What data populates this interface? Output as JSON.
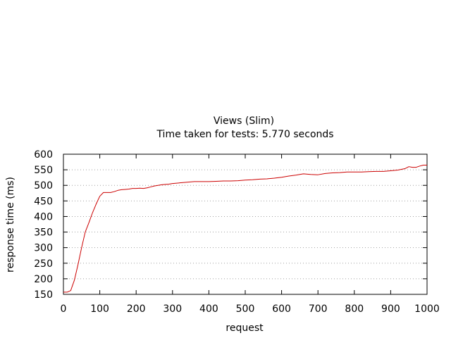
{
  "chart_data": {
    "type": "line",
    "title": "Views (Slim)",
    "subtitle": "Time taken for tests: 5.770 seconds",
    "xlabel": "request",
    "ylabel": "response time (ms)",
    "xlim": [
      0,
      1000
    ],
    "ylim": [
      150,
      600
    ],
    "xticks": [
      0,
      100,
      200,
      300,
      400,
      500,
      600,
      700,
      800,
      900,
      1000
    ],
    "yticks": [
      150,
      200,
      250,
      300,
      350,
      400,
      450,
      500,
      550,
      600
    ],
    "grid": "horizontal dotted",
    "legend": "none",
    "series": [
      {
        "color": "#cc0000",
        "x": [
          0,
          10,
          20,
          30,
          40,
          50,
          60,
          70,
          80,
          90,
          100,
          110,
          120,
          130,
          140,
          150,
          160,
          170,
          180,
          190,
          200,
          210,
          220,
          230,
          240,
          250,
          260,
          270,
          280,
          290,
          300,
          320,
          340,
          360,
          380,
          400,
          420,
          440,
          460,
          480,
          500,
          520,
          540,
          560,
          580,
          600,
          620,
          640,
          660,
          680,
          700,
          720,
          740,
          760,
          780,
          800,
          820,
          840,
          860,
          880,
          900,
          920,
          940,
          950,
          960,
          970,
          980,
          990,
          1000
        ],
        "y": [
          157,
          157,
          162,
          195,
          245,
          300,
          350,
          380,
          412,
          440,
          465,
          477,
          477,
          477,
          480,
          484,
          486,
          487,
          488,
          490,
          490,
          491,
          490,
          492,
          495,
          498,
          500,
          502,
          503,
          504,
          506,
          508,
          510,
          512,
          512,
          512,
          513,
          514,
          514,
          515,
          517,
          518,
          520,
          521,
          523,
          526,
          530,
          533,
          537,
          535,
          534,
          538,
          540,
          541,
          543,
          543,
          543,
          544,
          545,
          545,
          547,
          549,
          554,
          560,
          558,
          558,
          562,
          565,
          565
        ]
      }
    ]
  }
}
